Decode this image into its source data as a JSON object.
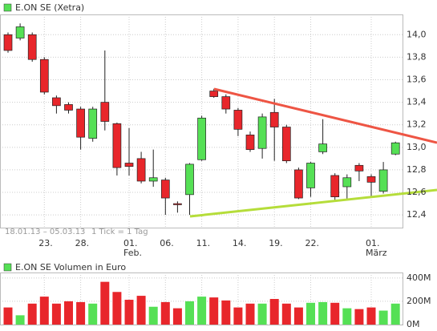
{
  "chart_data": [
    {
      "type": "candlestick",
      "legend": "E.ON SE (Xetra)",
      "period": "18.01.13 – 05.03.13",
      "tick_info": "1 Tick = 1 Tag",
      "categories": [
        null,
        null,
        null,
        "23.",
        null,
        null,
        "28.",
        null,
        null,
        null,
        "01.\nFeb.",
        null,
        null,
        "06.",
        null,
        null,
        "11.",
        null,
        null,
        "14.",
        null,
        null,
        "19.",
        null,
        null,
        "22.",
        null,
        null,
        null,
        null,
        "01.\nMärz",
        null,
        null
      ],
      "open": [
        14.0,
        13.97,
        14.0,
        13.78,
        13.44,
        13.38,
        13.34,
        13.08,
        13.4,
        13.21,
        12.86,
        12.9,
        12.7,
        12.71,
        12.5,
        12.58,
        12.89,
        13.5,
        13.45,
        13.33,
        13.11,
        12.99,
        13.31,
        13.18,
        12.8,
        12.64,
        12.96,
        12.75,
        12.65,
        12.84,
        12.74,
        12.61,
        12.94
      ],
      "high": [
        14.02,
        14.1,
        14.02,
        13.8,
        13.46,
        13.4,
        13.36,
        13.36,
        13.86,
        13.22,
        13.17,
        12.96,
        12.98,
        12.73,
        12.52,
        12.86,
        13.28,
        13.52,
        13.47,
        13.35,
        13.14,
        13.3,
        13.43,
        13.2,
        12.82,
        12.87,
        13.25,
        12.77,
        12.76,
        12.86,
        12.76,
        12.87,
        13.05
      ],
      "low": [
        13.84,
        13.95,
        13.76,
        13.47,
        13.3,
        13.3,
        12.98,
        13.05,
        13.15,
        12.75,
        12.75,
        12.68,
        12.65,
        12.4,
        12.42,
        12.4,
        12.88,
        13.44,
        13.3,
        13.1,
        12.96,
        12.9,
        12.88,
        12.86,
        12.54,
        12.56,
        12.94,
        12.52,
        12.53,
        12.7,
        12.55,
        12.59,
        12.93
      ],
      "close": [
        13.86,
        14.07,
        13.78,
        13.49,
        13.37,
        13.33,
        13.09,
        13.34,
        13.23,
        12.82,
        12.83,
        12.7,
        12.73,
        12.55,
        12.49,
        12.85,
        13.26,
        13.45,
        13.34,
        13.16,
        12.98,
        13.27,
        13.18,
        12.88,
        12.55,
        12.86,
        13.03,
        12.56,
        12.73,
        12.79,
        12.69,
        12.8,
        13.04
      ],
      "up_color": "#55e055",
      "down_color": "#e8262b",
      "ylim": [
        12.28,
        14.18
      ],
      "yticks": [
        {
          "value": 12.4,
          "label": "12,4"
        },
        {
          "value": 12.6,
          "label": "12,6"
        },
        {
          "value": 12.8,
          "label": "12,8"
        },
        {
          "value": 13.0,
          "label": "13,0"
        },
        {
          "value": 13.2,
          "label": "13,2"
        },
        {
          "value": 13.4,
          "label": "13,4"
        },
        {
          "value": 13.6,
          "label": "13,6"
        },
        {
          "value": 13.8,
          "label": "13,8"
        },
        {
          "value": 14.0,
          "label": "14,0"
        }
      ],
      "grid": true
    },
    {
      "type": "bar",
      "legend": "E.ON SE Volumen in Euro",
      "values": [
        147,
        80,
        180,
        240,
        180,
        200,
        193,
        180,
        367,
        280,
        213,
        247,
        153,
        193,
        140,
        200,
        240,
        233,
        207,
        147,
        180,
        180,
        220,
        180,
        147,
        187,
        193,
        187,
        140,
        133,
        147,
        120,
        180
      ],
      "ylim": [
        0,
        447
      ],
      "yticks": [
        {
          "value": 0,
          "label": "0M"
        },
        {
          "value": 200,
          "label": "200M"
        },
        {
          "value": 400,
          "label": "400M"
        }
      ]
    }
  ]
}
